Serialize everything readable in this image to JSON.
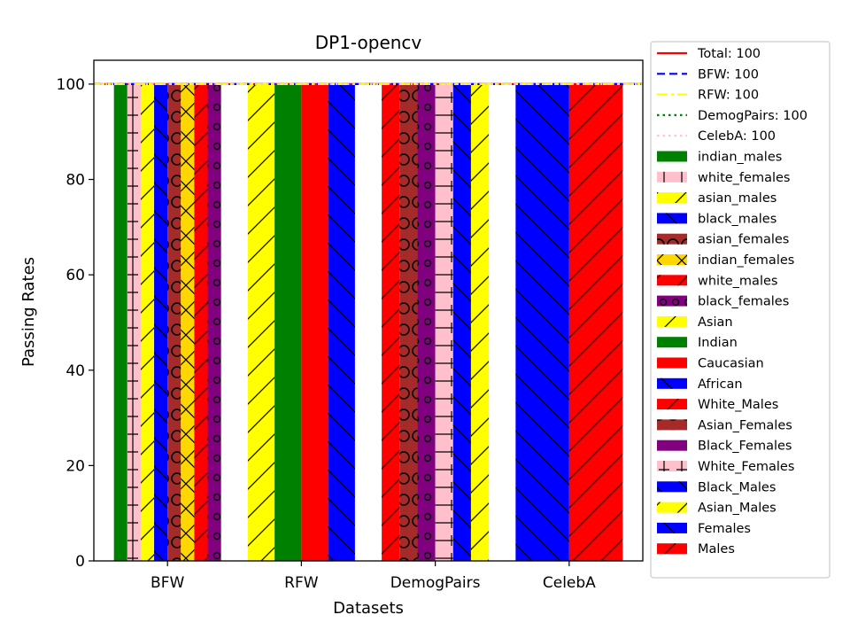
{
  "chart_data": {
    "type": "bar",
    "title": "DP1-opencv",
    "xlabel": "Datasets",
    "ylabel": "Passing Rates",
    "ylim": [
      0,
      105
    ],
    "yticks": [
      0,
      20,
      40,
      60,
      80,
      100
    ],
    "categories": [
      "BFW",
      "RFW",
      "DemogPairs",
      "CelebA"
    ],
    "legend_position": "outside right",
    "grid": false,
    "reference_lines": [
      {
        "label": "Total: 100",
        "value": 100,
        "color": "#ff0000",
        "dash": "solid"
      },
      {
        "label": "BFW: 100",
        "value": 100,
        "color": "#0000ff",
        "dash": "dashed"
      },
      {
        "label": "RFW: 100",
        "value": 100,
        "color": "#ffff00",
        "dash": "dashdot"
      },
      {
        "label": "DemogPairs: 100",
        "value": 100,
        "color": "#008000",
        "dash": "dotted"
      },
      {
        "label": "CelebA: 100",
        "value": 100,
        "color": "#ffc0cb",
        "dash": "dotted"
      }
    ],
    "groups": [
      {
        "dataset": "BFW",
        "bars": [
          {
            "name": "indian_males",
            "value": 100,
            "color": "#008000",
            "hatch": "none"
          },
          {
            "name": "white_females",
            "value": 100,
            "color": "#ffc0cb",
            "hatch": "vbar"
          },
          {
            "name": "asian_males",
            "value": 100,
            "color": "#ffff00",
            "hatch": "fwd"
          },
          {
            "name": "black_males",
            "value": 100,
            "color": "#0000ff",
            "hatch": "back"
          },
          {
            "name": "asian_females",
            "value": 100,
            "color": "#a52a2a",
            "hatch": "circle"
          },
          {
            "name": "indian_females",
            "value": 100,
            "color": "#ffd700",
            "hatch": "cross"
          },
          {
            "name": "white_males",
            "value": 100,
            "color": "#ff0000",
            "hatch": "fwd"
          },
          {
            "name": "black_females",
            "value": 100,
            "color": "#800080",
            "hatch": "dots"
          }
        ]
      },
      {
        "dataset": "RFW",
        "bars": [
          {
            "name": "Asian",
            "value": 100,
            "color": "#ffff00",
            "hatch": "fwd"
          },
          {
            "name": "Indian",
            "value": 100,
            "color": "#008000",
            "hatch": "none"
          },
          {
            "name": "Caucasian",
            "value": 100,
            "color": "#ff0000",
            "hatch": "none"
          },
          {
            "name": "African",
            "value": 100,
            "color": "#0000ff",
            "hatch": "back"
          }
        ]
      },
      {
        "dataset": "DemogPairs",
        "bars": [
          {
            "name": "White_Males",
            "value": 100,
            "color": "#ff0000",
            "hatch": "fwd"
          },
          {
            "name": "Asian_Females",
            "value": 100,
            "color": "#a52a2a",
            "hatch": "circle"
          },
          {
            "name": "Black_Females",
            "value": 100,
            "color": "#800080",
            "hatch": "dots"
          },
          {
            "name": "White_Females",
            "value": 100,
            "color": "#ffc0cb",
            "hatch": "hbar"
          },
          {
            "name": "Black_Males",
            "value": 100,
            "color": "#0000ff",
            "hatch": "back"
          },
          {
            "name": "Asian_Males",
            "value": 100,
            "color": "#ffff00",
            "hatch": "fwd"
          }
        ]
      },
      {
        "dataset": "CelebA",
        "bars": [
          {
            "name": "Females",
            "value": 100,
            "color": "#0000ff",
            "hatch": "back"
          },
          {
            "name": "Males",
            "value": 100,
            "color": "#ff0000",
            "hatch": "fwd"
          }
        ]
      }
    ],
    "legend_bars": [
      {
        "label": "indian_males",
        "color": "#008000",
        "hatch": "none"
      },
      {
        "label": "white_females",
        "color": "#ffc0cb",
        "hatch": "vbar"
      },
      {
        "label": "asian_males",
        "color": "#ffff00",
        "hatch": "fwd"
      },
      {
        "label": "black_males",
        "color": "#0000ff",
        "hatch": "back"
      },
      {
        "label": "asian_females",
        "color": "#a52a2a",
        "hatch": "circle"
      },
      {
        "label": "indian_females",
        "color": "#ffd700",
        "hatch": "cross"
      },
      {
        "label": "white_males",
        "color": "#ff0000",
        "hatch": "fwd"
      },
      {
        "label": "black_females",
        "color": "#800080",
        "hatch": "dots"
      },
      {
        "label": "Asian",
        "color": "#ffff00",
        "hatch": "fwd"
      },
      {
        "label": "Indian",
        "color": "#008000",
        "hatch": "none"
      },
      {
        "label": "Caucasian",
        "color": "#ff0000",
        "hatch": "none"
      },
      {
        "label": "African",
        "color": "#0000ff",
        "hatch": "back"
      },
      {
        "label": "White_Males",
        "color": "#ff0000",
        "hatch": "fwd"
      },
      {
        "label": "Asian_Females",
        "color": "#a52a2a",
        "hatch": "circle"
      },
      {
        "label": "Black_Females",
        "color": "#800080",
        "hatch": "none"
      },
      {
        "label": "White_Females",
        "color": "#ffc0cb",
        "hatch": "vbar"
      },
      {
        "label": "Black_Males",
        "color": "#0000ff",
        "hatch": "back"
      },
      {
        "label": "Asian_Males",
        "color": "#ffff00",
        "hatch": "fwd"
      },
      {
        "label": "Females",
        "color": "#0000ff",
        "hatch": "back"
      },
      {
        "label": "Males",
        "color": "#ff0000",
        "hatch": "fwd"
      }
    ]
  }
}
